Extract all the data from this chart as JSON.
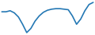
{
  "x": [
    0,
    1,
    2,
    3,
    4,
    5,
    6,
    7,
    8,
    9,
    10,
    11,
    12,
    13,
    14,
    15,
    16,
    17,
    18,
    19,
    20,
    21,
    22
  ],
  "y": [
    0.6,
    0.6,
    0.7,
    0.5,
    0.1,
    -0.6,
    -1.4,
    -1.0,
    -0.3,
    0.2,
    0.55,
    0.75,
    0.85,
    0.9,
    0.9,
    0.85,
    0.8,
    0.2,
    -0.6,
    -0.1,
    0.7,
    1.3,
    1.5
  ],
  "line_color": "#2478b4",
  "linewidth": 1.2,
  "background_color": "#ffffff"
}
